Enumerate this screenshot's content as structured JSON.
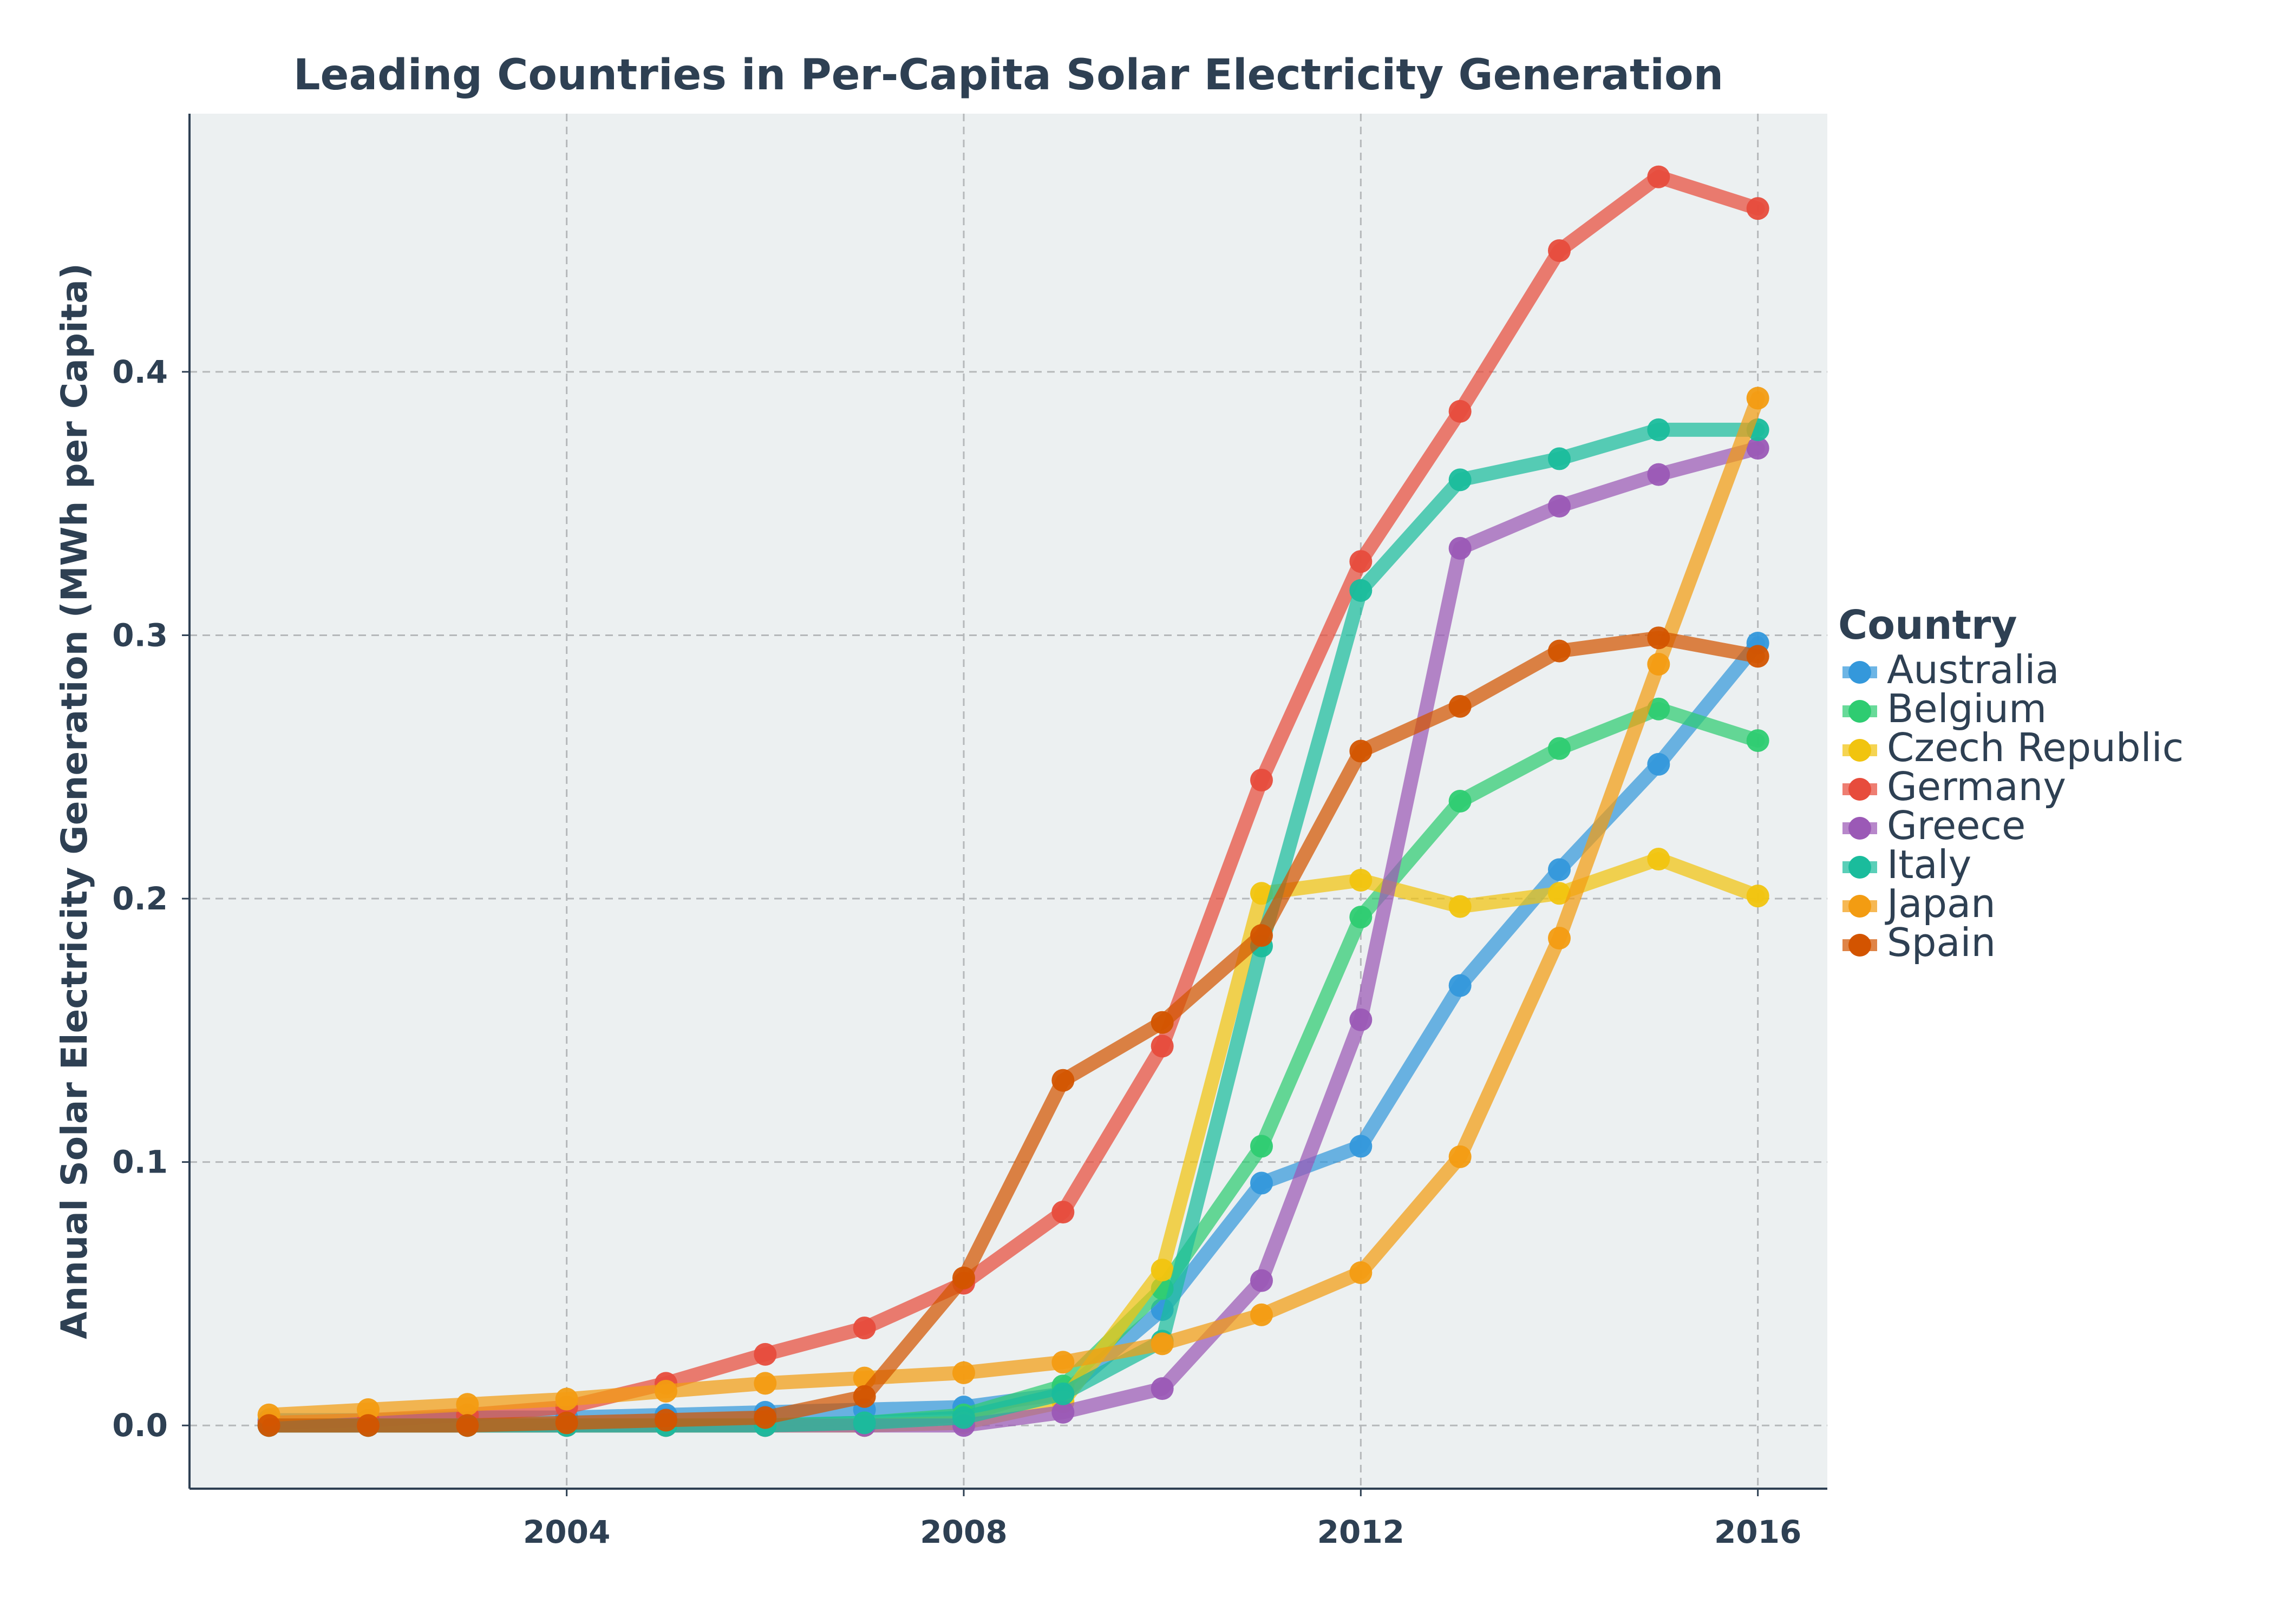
{
  "chart_data": {
    "type": "line",
    "title": "Leading Countries in Per-Capita Solar Electricity Generation",
    "xlabel": "",
    "ylabel": "Annual Solar Electricity Generation (MWh per Capita)",
    "xlim": [
      2000.2,
      2016.7
    ],
    "ylim": [
      -0.024,
      0.498
    ],
    "x_ticks": [
      2004,
      2008,
      2012,
      2016
    ],
    "y_ticks": [
      0.0,
      0.1,
      0.2,
      0.3,
      0.4
    ],
    "y_tick_labels": [
      "0.0",
      "0.1",
      "0.2",
      "0.3",
      "0.4"
    ],
    "x_tick_labels": [
      "2004",
      "2008",
      "2012",
      "2016"
    ],
    "grid": true,
    "legend": {
      "title": "Country",
      "placement": "center-right-outside"
    },
    "x": [
      2001,
      2002,
      2003,
      2004,
      2005,
      2006,
      2007,
      2008,
      2009,
      2010,
      2011,
      2012,
      2013,
      2014,
      2015,
      2016
    ],
    "series": [
      {
        "name": "Australia",
        "color": "#3498db",
        "values": [
          0.002,
          0.002,
          0.003,
          0.003,
          0.004,
          0.005,
          0.006,
          0.007,
          0.012,
          0.044,
          0.092,
          0.106,
          0.167,
          0.211,
          0.251,
          0.297
        ]
      },
      {
        "name": "Belgium",
        "color": "#2ecc71",
        "values": [
          0.0,
          0.0,
          0.0,
          0.0,
          0.0,
          0.0,
          0.001,
          0.004,
          0.015,
          0.052,
          0.106,
          0.193,
          0.237,
          0.257,
          0.272,
          0.26
        ]
      },
      {
        "name": "Czech Republic",
        "color": "#f1c40f",
        "values": [
          0.0,
          0.0,
          0.0,
          0.0,
          0.0,
          0.0,
          0.0,
          0.001,
          0.009,
          0.059,
          0.202,
          0.207,
          0.197,
          0.202,
          0.215,
          0.201
        ]
      },
      {
        "name": "Germany",
        "color": "#e74c3c",
        "values": [
          0.001,
          0.002,
          0.004,
          0.007,
          0.016,
          0.027,
          0.037,
          0.054,
          0.081,
          0.144,
          0.245,
          0.328,
          0.385,
          0.446,
          0.474,
          0.462
        ]
      },
      {
        "name": "Greece",
        "color": "#9b59b6",
        "values": [
          0.0,
          0.0,
          0.0,
          0.0,
          0.0,
          0.0,
          0.0,
          0.0,
          0.005,
          0.014,
          0.055,
          0.154,
          0.333,
          0.349,
          0.361,
          0.371
        ]
      },
      {
        "name": "Italy",
        "color": "#1abc9c",
        "values": [
          0.0,
          0.0,
          0.0,
          0.0,
          0.0,
          0.0,
          0.001,
          0.003,
          0.012,
          0.032,
          0.182,
          0.317,
          0.359,
          0.367,
          0.378,
          0.378
        ]
      },
      {
        "name": "Japan",
        "color": "#f39c12",
        "values": [
          0.004,
          0.006,
          0.008,
          0.01,
          0.013,
          0.016,
          0.018,
          0.02,
          0.024,
          0.031,
          0.042,
          0.058,
          0.102,
          0.185,
          0.289,
          0.39
        ]
      },
      {
        "name": "Spain",
        "color": "#d35400",
        "values": [
          0.0,
          0.0,
          0.0,
          0.001,
          0.002,
          0.003,
          0.011,
          0.056,
          0.131,
          0.153,
          0.186,
          0.256,
          0.273,
          0.294,
          0.299,
          0.292
        ]
      }
    ]
  }
}
